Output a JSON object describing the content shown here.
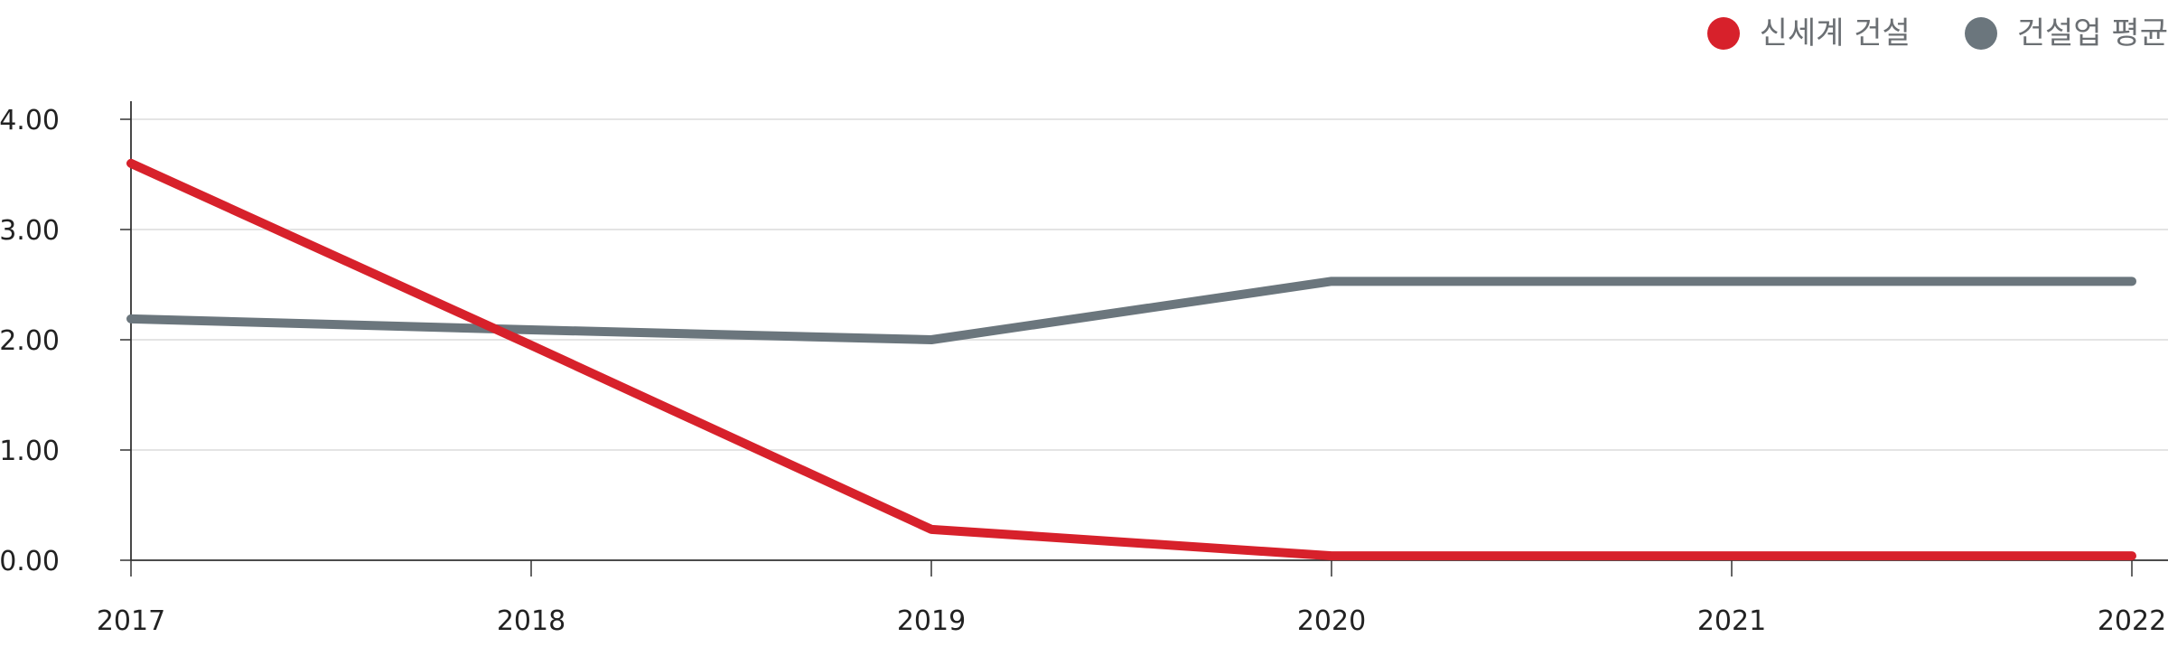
{
  "chart_data": {
    "type": "line",
    "title": "",
    "xlabel": "",
    "ylabel": "",
    "categories": [
      "2017",
      "2018",
      "2019",
      "2020",
      "2021",
      "2022"
    ],
    "ylim": [
      0,
      4
    ],
    "yticks": [
      "0.00",
      "1.00",
      "2.00",
      "3.00",
      "4.00"
    ],
    "grid": true,
    "legend_position": "top-right",
    "series": [
      {
        "name": "신세계 건설",
        "color": "#d7212b",
        "values": [
          3.6,
          1.95,
          0.28,
          0.04,
          0.04,
          0.04
        ]
      },
      {
        "name": "건설업 평균",
        "color": "#6b767d",
        "values": [
          2.19,
          2.09,
          2.0,
          2.53,
          2.53,
          2.53
        ]
      }
    ]
  }
}
